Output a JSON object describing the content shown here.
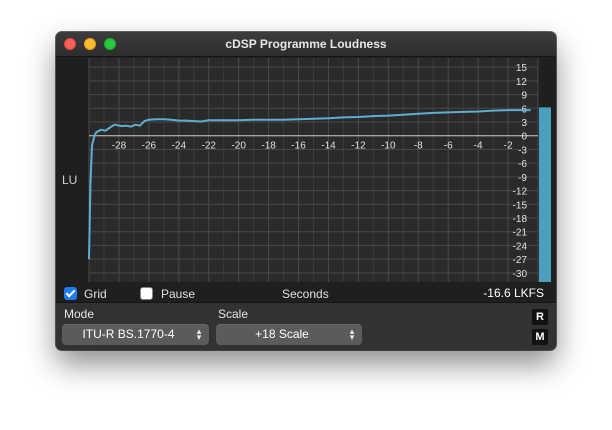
{
  "window": {
    "title": "cDSP Programme Loudness"
  },
  "graph": {
    "y_axis_label": "LU",
    "x_axis_label": "Seconds",
    "x_ticks": [
      "-28",
      "-26",
      "-24",
      "-22",
      "-20",
      "-18",
      "-16",
      "-14",
      "-12",
      "-10",
      "-8",
      "-6",
      "-4",
      "-2"
    ],
    "y_ticks": [
      "15",
      "12",
      "9",
      "6",
      "3",
      "0",
      "-3",
      "-6",
      "-9",
      "-12",
      "-15",
      "-18",
      "-21",
      "-24",
      "-27",
      "-30"
    ],
    "line_color": "#5eaed0",
    "bar_color": "#4a9fbf",
    "meter_level_lu": 6.2
  },
  "chart_data": {
    "type": "line",
    "title": "",
    "xlabel": "Seconds",
    "ylabel": "LU",
    "xlim": [
      -30,
      0
    ],
    "ylim": [
      -32,
      17
    ],
    "grid": true,
    "series": [
      {
        "x": [
          -30,
          -29.9,
          -29.8,
          -29.6,
          -29.5,
          -29.2,
          -28.9,
          -28.6,
          -28.3,
          -27.8,
          -27.5,
          -27.2,
          -26.9,
          -26.6,
          -26.3,
          -26.0,
          -25.5,
          -25.0,
          -24.5,
          -24.0,
          -23.5,
          -23.0,
          -22.5,
          -22.0,
          -21.5,
          -21.0,
          -20.0,
          -19.0,
          -18.0,
          -17.0,
          -16.0,
          -15.0,
          -14.0,
          -13.0,
          -12.0,
          -11.0,
          -10.0,
          -9.0,
          -8.0,
          -7.0,
          -6.0,
          -5.0,
          -4.0,
          -3.0,
          -2.0,
          -1.0,
          -0.5
        ],
        "y": [
          -27.0,
          -10.0,
          -2.0,
          0.3,
          0.8,
          1.3,
          1.1,
          1.8,
          2.4,
          2.1,
          2.2,
          2.0,
          2.4,
          2.2,
          3.2,
          3.5,
          3.6,
          3.6,
          3.5,
          3.3,
          3.3,
          3.2,
          3.1,
          3.4,
          3.4,
          3.4,
          3.4,
          3.5,
          3.5,
          3.5,
          3.6,
          3.7,
          3.8,
          4.0,
          4.1,
          4.3,
          4.4,
          4.6,
          4.8,
          5.0,
          5.1,
          5.2,
          5.3,
          5.5,
          5.6,
          5.6,
          5.6
        ]
      }
    ]
  },
  "controls": {
    "grid_label": "Grid",
    "grid_checked": true,
    "pause_label": "Pause",
    "pause_checked": false,
    "lkfs_readout": "-16.6 LKFS"
  },
  "mode": {
    "label": "Mode",
    "value": "ITU-R BS.1770-4"
  },
  "scale": {
    "label": "Scale",
    "value": "+18 Scale"
  },
  "buttons": {
    "reset": "R",
    "meter": "M"
  }
}
